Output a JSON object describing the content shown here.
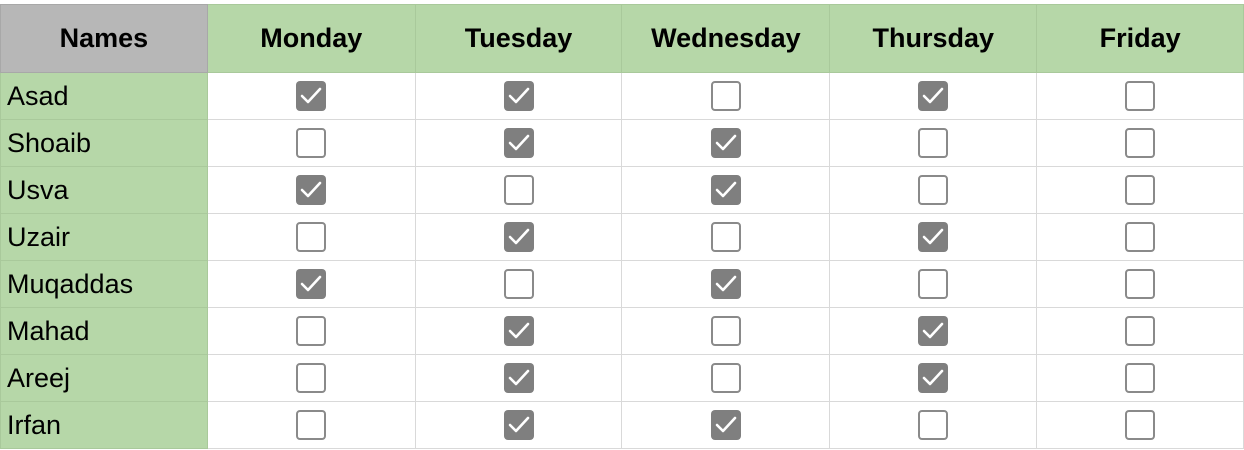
{
  "columns": [
    "Names",
    "Monday",
    "Tuesday",
    "Wednesday",
    "Thursday",
    "Friday"
  ],
  "rows": [
    {
      "name": "Asad",
      "checks": [
        true,
        true,
        false,
        true,
        false
      ]
    },
    {
      "name": "Shoaib",
      "checks": [
        false,
        true,
        true,
        false,
        false
      ]
    },
    {
      "name": "Usva",
      "checks": [
        true,
        false,
        true,
        false,
        false
      ]
    },
    {
      "name": "Uzair",
      "checks": [
        false,
        true,
        false,
        true,
        false
      ]
    },
    {
      "name": "Muqaddas",
      "checks": [
        true,
        false,
        true,
        false,
        false
      ]
    },
    {
      "name": "Mahad",
      "checks": [
        false,
        true,
        false,
        true,
        false
      ]
    },
    {
      "name": "Areej",
      "checks": [
        false,
        true,
        false,
        true,
        false
      ]
    },
    {
      "name": "Irfan",
      "checks": [
        false,
        true,
        true,
        false,
        false
      ]
    }
  ],
  "colors": {
    "header_names": "#b7b7b7",
    "header_days": "#b6d7a8",
    "name_cells": "#b6d7a8",
    "checkbox_checked": "#7f7f7f"
  }
}
